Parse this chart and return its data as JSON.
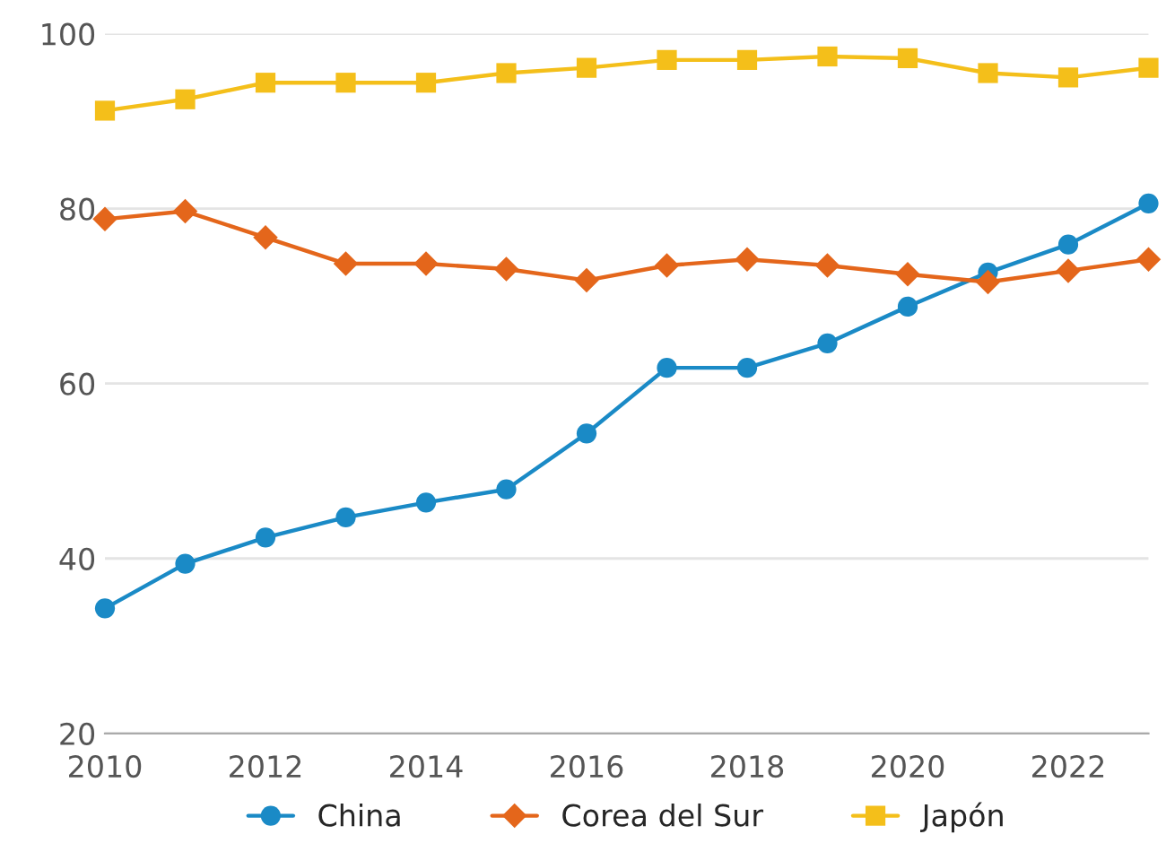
{
  "chart_data": {
    "type": "line",
    "x": [
      2010,
      2011,
      2012,
      2013,
      2014,
      2015,
      2016,
      2017,
      2018,
      2019,
      2020,
      2021,
      2022,
      2023
    ],
    "series": [
      {
        "name": "China",
        "color": "#1a8ac6",
        "marker": "circle",
        "values": [
          34.3,
          39.4,
          42.4,
          44.7,
          46.4,
          47.9,
          54.3,
          61.8,
          61.8,
          64.6,
          68.8,
          72.7,
          75.9,
          80.6
        ]
      },
      {
        "name": "Corea del Sur",
        "color": "#e4661b",
        "marker": "diamond",
        "values": [
          78.8,
          79.7,
          76.7,
          73.7,
          73.7,
          73.1,
          71.8,
          73.5,
          74.2,
          73.5,
          72.5,
          71.6,
          72.9,
          74.2
        ]
      },
      {
        "name": "Japón",
        "color": "#f4bf1a",
        "marker": "square",
        "values": [
          91.2,
          92.5,
          94.4,
          94.4,
          94.4,
          95.5,
          96.1,
          97.0,
          97.0,
          97.4,
          97.2,
          95.5,
          95.0,
          96.1
        ]
      }
    ],
    "xlim": [
      2010,
      2023
    ],
    "xticks": [
      2010,
      2012,
      2014,
      2016,
      2018,
      2020,
      2022
    ],
    "ylim": [
      20,
      100
    ],
    "yticks": [
      20,
      40,
      60,
      80,
      100
    ],
    "grid": "y",
    "legend": "bottom",
    "line_style": "solid"
  }
}
